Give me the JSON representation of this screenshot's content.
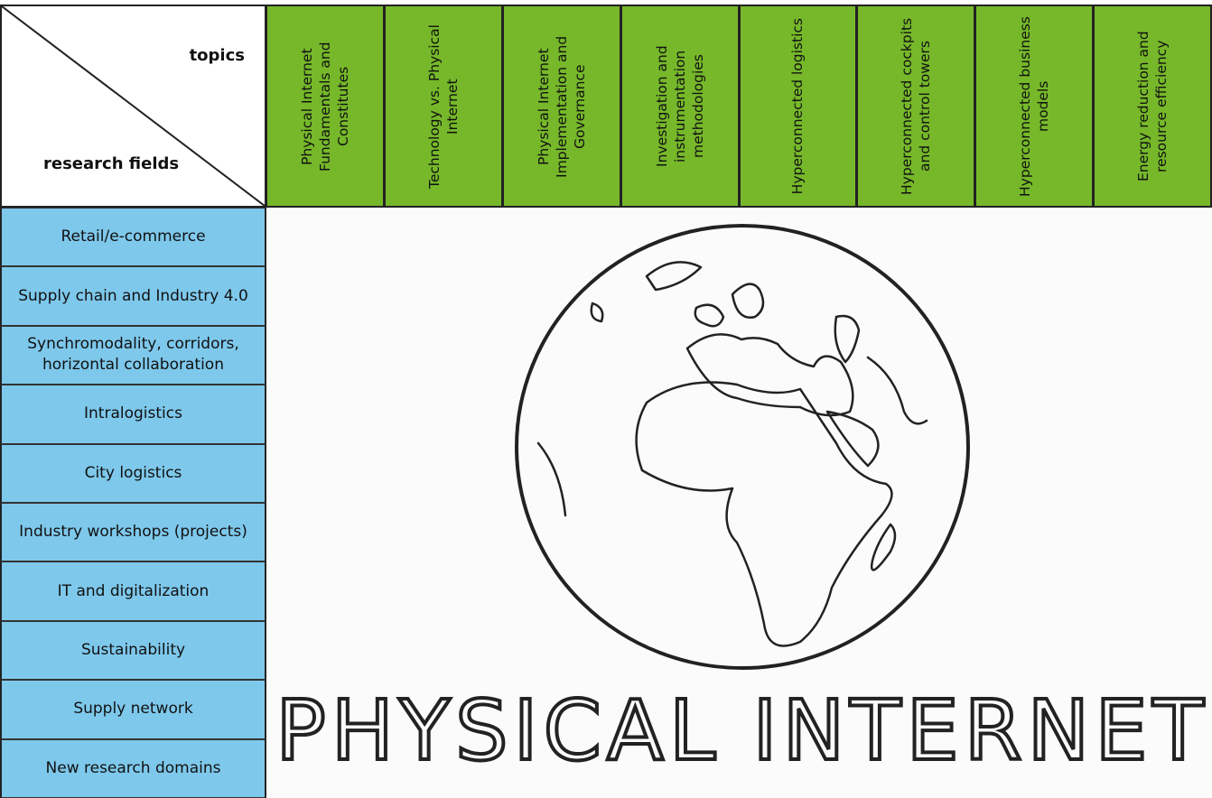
{
  "header": {
    "topics_label": "topics",
    "fields_label": "research fields",
    "topics": [
      "Physical Internet Fundamentals and Constitutes",
      "Technology vs. Physical Internet",
      "Physical Internet Implementation and Governance",
      "Investigation and instrumentation methodologies",
      "Hyperconnected logistics",
      "Hyperconnected cockpits and control towers",
      "Hyperconnected business models",
      "Energy reduction and resource efficiency"
    ]
  },
  "research_fields": [
    "Retail/e-commerce",
    "Supply chain and Industry 4.0",
    "Synchromodality, corridors, horizontal collaboration",
    "Intralogistics",
    "City logistics",
    "Industry workshops (projects)",
    "IT and digitalization",
    "Sustainability",
    "Supply network",
    "New research domains"
  ],
  "image": {
    "caption": "PHYSICAL INTERNET"
  }
}
